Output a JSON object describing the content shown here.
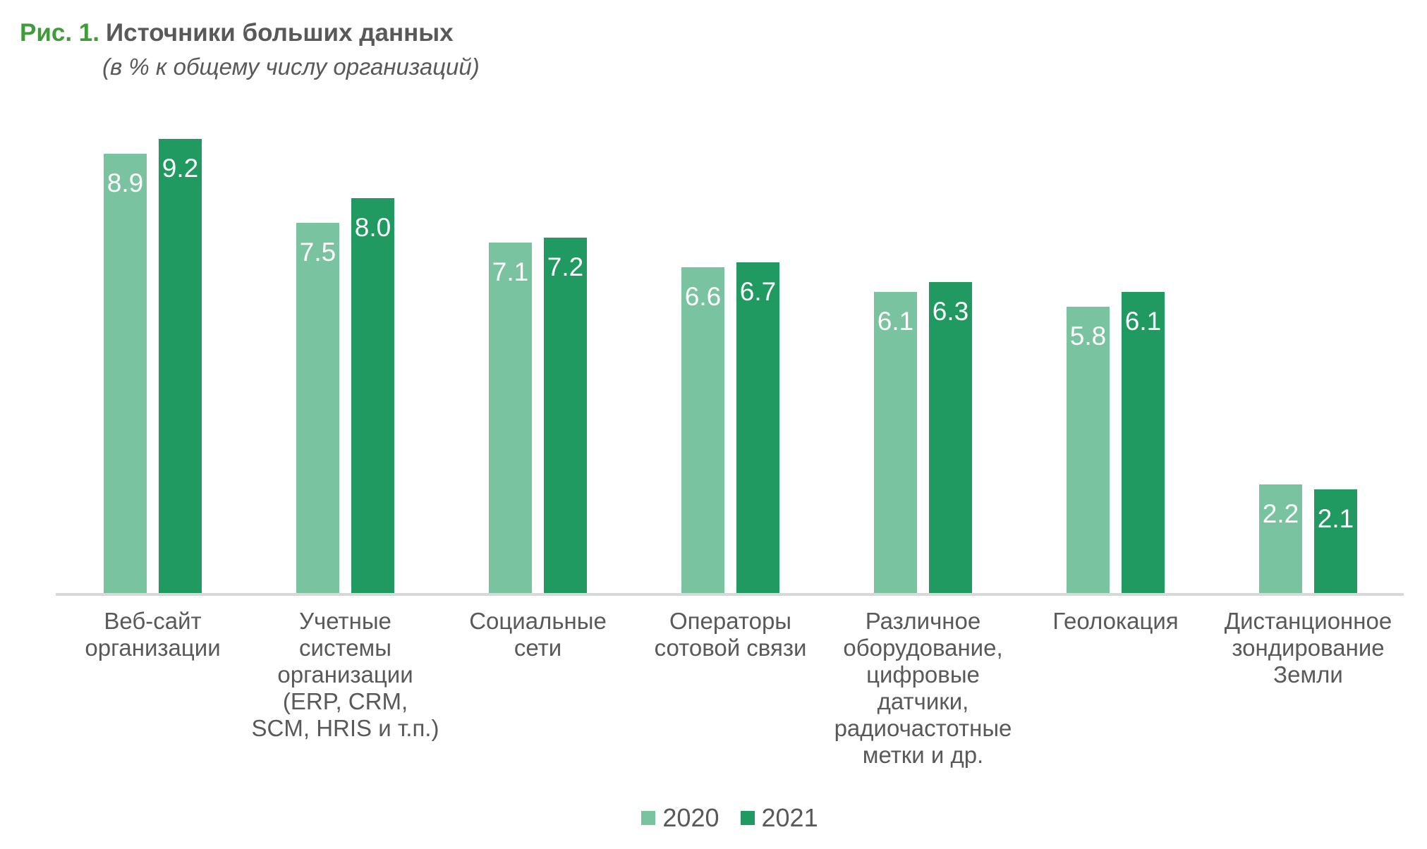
{
  "figure": {
    "label": "Рис. 1.",
    "title": "Источники больших данных",
    "subtitle": "(в % к общему числу организаций)"
  },
  "colors": {
    "series_2020": "#7AC3A0",
    "series_2021": "#219A61",
    "figure_label_green": "#3E9C3B",
    "text_gray": "#595959",
    "axis_line": "#D8D8D8",
    "value_label_text": "#FFFFFF",
    "background": "#FFFFFF"
  },
  "legend": {
    "position": "bottom-center",
    "items": [
      {
        "label": "2020",
        "color": "#7AC3A0"
      },
      {
        "label": "2021",
        "color": "#219A61"
      }
    ]
  },
  "chart_data": {
    "type": "bar",
    "title": "Источники больших данных",
    "subtitle": "(в % к общему числу организаций)",
    "unit": "% к общему числу организаций",
    "categories": [
      "Веб-сайт\nорганизации",
      "Учетные\nсистемы\nорганизации\n(ERP, CRM,\nSCM, HRIS и т.п.)",
      "Социальные\nсети",
      "Операторы\nсотовой связи",
      "Различное\nоборудование,\nцифровые\nдатчики,\nрадиочастотные\nметки и др.",
      "Геолокация",
      "Дистанционное\nзондирование\nЗемли"
    ],
    "series": [
      {
        "name": "2020",
        "color": "#7AC3A0",
        "values": [
          8.9,
          7.5,
          7.1,
          6.6,
          6.1,
          5.8,
          2.2
        ],
        "labels": [
          "8.9",
          "7.5",
          "7.1",
          "6.6",
          "6.1",
          "5.8",
          "2.2"
        ]
      },
      {
        "name": "2021",
        "color": "#219A61",
        "values": [
          9.2,
          8.0,
          7.2,
          6.7,
          6.3,
          6.1,
          2.1
        ],
        "labels": [
          "9.2",
          "8.0",
          "7.2",
          "6.7",
          "6.3",
          "6.1",
          "2.1"
        ]
      }
    ],
    "ylim": [
      0,
      10
    ],
    "grid": false,
    "y_axis_visible": false,
    "x_axis_line": true,
    "legend_position": "bottom",
    "value_labels": "inside-top-white"
  }
}
